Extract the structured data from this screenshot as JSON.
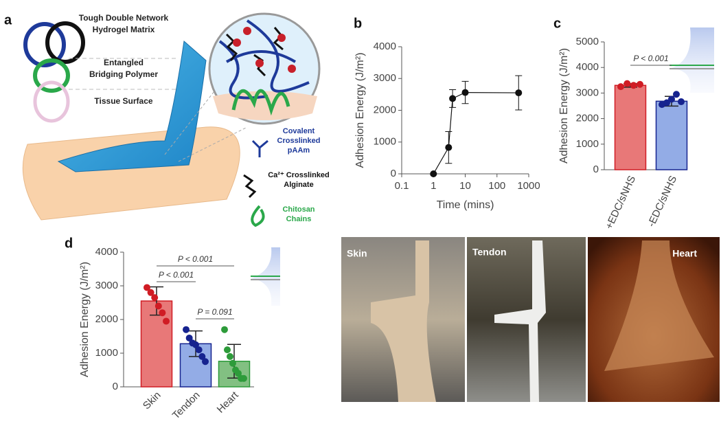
{
  "diagram": {
    "label": "a",
    "layers": [
      [
        "Tough Double Network",
        "Hydrogel Matrix"
      ],
      [
        "Entangled",
        "Bridging Polymer"
      ],
      [
        "Tissue Surface"
      ]
    ],
    "legend": [
      [
        "Covalent",
        "Crosslinked",
        "pAAm"
      ],
      [
        "Ca²⁺ Crosslinked",
        "Alginate"
      ],
      [
        "Chitosan",
        "Chains"
      ]
    ]
  },
  "chart_data": [
    {
      "type": "line",
      "label": "b",
      "log_x": true,
      "x_label": "Time (mins)",
      "y_label": "Adhesion Energy (J/m²)",
      "x": [
        1,
        3,
        4,
        10,
        480
      ],
      "values": [
        0,
        830,
        2370,
        2560,
        2550
      ],
      "errors": [
        0,
        500,
        280,
        350,
        540
      ],
      "color": "#111111",
      "xlim": [
        0.1,
        1000
      ],
      "xticks": [
        0.1,
        1,
        10,
        100,
        1000
      ],
      "ylim": [
        0,
        4000
      ],
      "yticks": [
        0,
        1000,
        2000,
        3000,
        4000
      ]
    },
    {
      "type": "bar",
      "label": "c",
      "y_label": "Adhesion Energy (J/m²)",
      "categories": [
        "+EDC/sNHS",
        "-EDC/sNHS"
      ],
      "values": [
        3300,
        2680
      ],
      "errors": [
        70,
        190
      ],
      "colors": [
        "#e87878",
        "#93ace6"
      ],
      "point_colors": [
        "#d01c24",
        "#16238f"
      ],
      "points": [
        [
          3250,
          3370,
          3300,
          3340
        ],
        [
          2550,
          2620,
          2760,
          2950,
          2660
        ]
      ],
      "annotations": [
        "P < 0.001"
      ],
      "ylim": [
        0,
        5000
      ],
      "yticks": [
        0,
        1000,
        2000,
        3000,
        4000,
        5000
      ]
    },
    {
      "type": "bar",
      "label": "d",
      "y_label": "Adhesion Energy (J/m²)",
      "categories": [
        "Skin",
        "Tendon",
        "Heart"
      ],
      "values": [
        2550,
        1280,
        760
      ],
      "errors": [
        420,
        380,
        500
      ],
      "colors": [
        "#e87878",
        "#93ace6",
        "#82c082"
      ],
      "point_colors": [
        "#d01c24",
        "#16238f",
        "#2d9b3a"
      ],
      "points": [
        [
          2950,
          2800,
          2650,
          2400,
          2200,
          1950
        ],
        [
          1700,
          1450,
          1300,
          1250,
          1100,
          900,
          750
        ],
        [
          1700,
          1100,
          900,
          700,
          500,
          400,
          250,
          250
        ]
      ],
      "annotations": [
        "P < 0.001",
        "P < 0.001",
        "P = 0.091"
      ],
      "ylim": [
        0,
        4000
      ],
      "yticks": [
        0,
        1000,
        2000,
        3000,
        4000
      ]
    }
  ],
  "photos": {
    "labels": [
      "Skin",
      "Tendon",
      "Heart"
    ]
  }
}
